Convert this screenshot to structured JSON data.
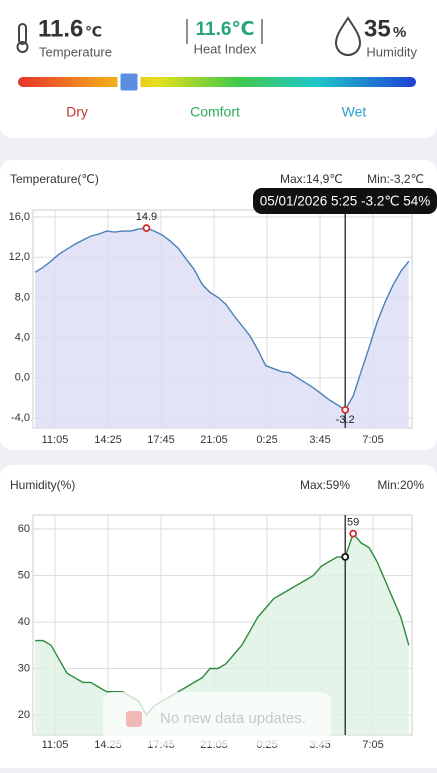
{
  "header": {
    "temperature": {
      "value": "11.6",
      "unit": "℃",
      "label": "Temperature"
    },
    "heat_index": {
      "value": "11.6℃",
      "label": "Heat Index"
    },
    "humidity": {
      "value": "35",
      "unit": "%",
      "label": "Humidity"
    },
    "comfort_scale": [
      "Dry",
      "Comfort",
      "Wet"
    ]
  },
  "chart_data": [
    {
      "type": "line",
      "title": "Temperature(℃)",
      "max_label": "Max:14,9℃",
      "min_label": "Min:-3,2℃",
      "tooltip": "05/01/2026 5:25 -3.2℃ 54%",
      "x": [
        590,
        620,
        650,
        680,
        710,
        740,
        770,
        800,
        830,
        860,
        890,
        920,
        950,
        980,
        1010,
        1040,
        1070,
        1100,
        1130,
        1160,
        1190,
        1220,
        1250,
        1280,
        1310,
        1340,
        1370,
        1400,
        1430,
        1460,
        1490,
        1520,
        1550,
        1580,
        1610,
        1640,
        1670,
        1700,
        1730,
        1760,
        1790,
        1820,
        1850,
        1880,
        1910,
        1940,
        1970,
        2000
      ],
      "values": [
        10.5,
        11.0,
        11.6,
        12.3,
        12.8,
        13.3,
        13.7,
        14.1,
        14.3,
        14.6,
        14.5,
        14.6,
        14.6,
        14.8,
        14.9,
        14.6,
        14.2,
        13.6,
        12.9,
        11.8,
        10.8,
        9.3,
        8.5,
        8.0,
        7.3,
        6.2,
        5.2,
        4.2,
        2.8,
        1.2,
        0.9,
        0.6,
        0.5,
        0.0,
        -0.5,
        -1.0,
        -1.6,
        -2.2,
        -2.7,
        -3.2,
        -1.8,
        0.6,
        3.0,
        5.5,
        7.5,
        9.2,
        10.6,
        11.6
      ],
      "color": "#4a80b8",
      "fill_color": "#dcdcf6",
      "xlim": [
        582,
        2012
      ],
      "xticks": [
        {
          "value": 665,
          "label": "11:05"
        },
        {
          "value": 865,
          "label": "14:25"
        },
        {
          "value": 1065,
          "label": "17:45"
        },
        {
          "value": 1265,
          "label": "21:05"
        },
        {
          "value": 1465,
          "label": "0:25"
        },
        {
          "value": 1665,
          "label": "3:45"
        },
        {
          "value": 1865,
          "label": "7:05"
        }
      ],
      "ylim": [
        -5,
        16.7
      ],
      "yticks": [
        {
          "value": 16,
          "label": "16,0"
        },
        {
          "value": 12,
          "label": "12,0"
        },
        {
          "value": 8,
          "label": "8,0"
        },
        {
          "value": 4,
          "label": "4,0"
        },
        {
          "value": 0,
          "label": "0,0"
        },
        {
          "value": -4,
          "label": "-4,0"
        }
      ],
      "grid": true
    },
    {
      "type": "line",
      "title": "Humidity(%)",
      "max_label": "Max:59%",
      "min_label": "Min:20%",
      "x": [
        590,
        620,
        650,
        680,
        710,
        740,
        770,
        800,
        830,
        860,
        890,
        920,
        950,
        980,
        1010,
        1040,
        1070,
        1100,
        1130,
        1160,
        1190,
        1220,
        1250,
        1280,
        1310,
        1340,
        1370,
        1400,
        1430,
        1460,
        1490,
        1520,
        1550,
        1580,
        1610,
        1640,
        1670,
        1700,
        1730,
        1760,
        1790,
        1820,
        1850,
        1880,
        1910,
        1940,
        1970,
        2000
      ],
      "values": [
        36,
        36,
        35,
        32,
        29,
        28,
        27,
        27,
        26,
        25,
        25,
        25,
        24,
        23,
        20,
        22,
        23,
        24,
        25,
        26,
        27,
        28,
        30,
        30,
        31,
        33,
        35,
        38,
        41,
        43,
        45,
        46,
        47,
        48,
        49,
        50,
        52,
        53,
        54,
        54,
        59,
        57,
        56,
        53,
        49,
        45,
        41,
        35
      ],
      "color": "#2e8b3e",
      "fill_color": "#ddf1e2",
      "xlim": [
        582,
        2012
      ],
      "xticks": [
        {
          "value": 665,
          "label": "11:05"
        },
        {
          "value": 865,
          "label": "14:25"
        },
        {
          "value": 1065,
          "label": "17:45"
        },
        {
          "value": 1265,
          "label": "21:05"
        },
        {
          "value": 1465,
          "label": "0:25"
        },
        {
          "value": 1665,
          "label": "3:45"
        },
        {
          "value": 1865,
          "label": "7:05"
        }
      ],
      "ylim": [
        15.7,
        63
      ],
      "yticks": [
        60,
        50,
        40,
        30,
        20
      ],
      "grid": true
    }
  ],
  "toast": "No new data updates."
}
